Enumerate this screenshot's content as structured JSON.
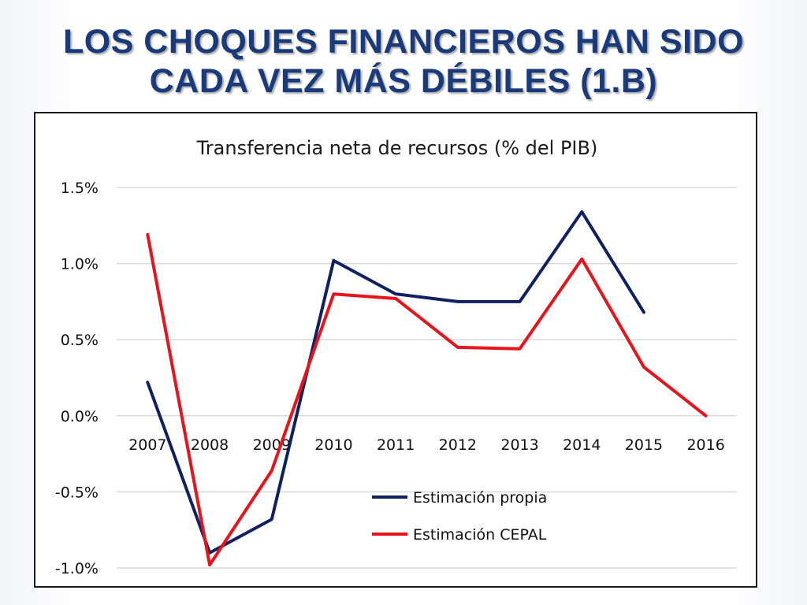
{
  "slide": {
    "title_line1": "LOS CHOQUES FINANCIEROS HAN SIDO",
    "title_line2": "CADA VEZ MÁS DÉBILES (1.B)"
  },
  "colors": {
    "title": "#1b3a7a",
    "series_propia": "#0f2160",
    "series_cepal": "#e8141b",
    "grid": "#d9d9d9"
  },
  "chart_data": {
    "type": "line",
    "title": "Transferencia neta de recursos (% del PIB)",
    "xlabel": "",
    "ylabel": "",
    "categories": [
      "2007",
      "2008",
      "2009",
      "2010",
      "2011",
      "2012",
      "2013",
      "2014",
      "2015",
      "2016"
    ],
    "y_ticks": [
      "1.5%",
      "1.0%",
      "0.5%",
      "0.0%",
      "-0.5%",
      "-1.0%"
    ],
    "ylim": [
      -1.0,
      1.5
    ],
    "grid": true,
    "legend_position": "bottom-center",
    "series": [
      {
        "name": "Estimación propia",
        "color": "#0f2160",
        "values": [
          0.22,
          -0.9,
          -0.68,
          1.02,
          0.8,
          0.75,
          0.75,
          1.34,
          0.68,
          null
        ]
      },
      {
        "name": "Estimación CEPAL",
        "color": "#e8141b",
        "values": [
          1.19,
          -0.98,
          -0.36,
          0.8,
          0.77,
          0.45,
          0.44,
          1.03,
          0.32,
          0.0
        ]
      }
    ]
  }
}
